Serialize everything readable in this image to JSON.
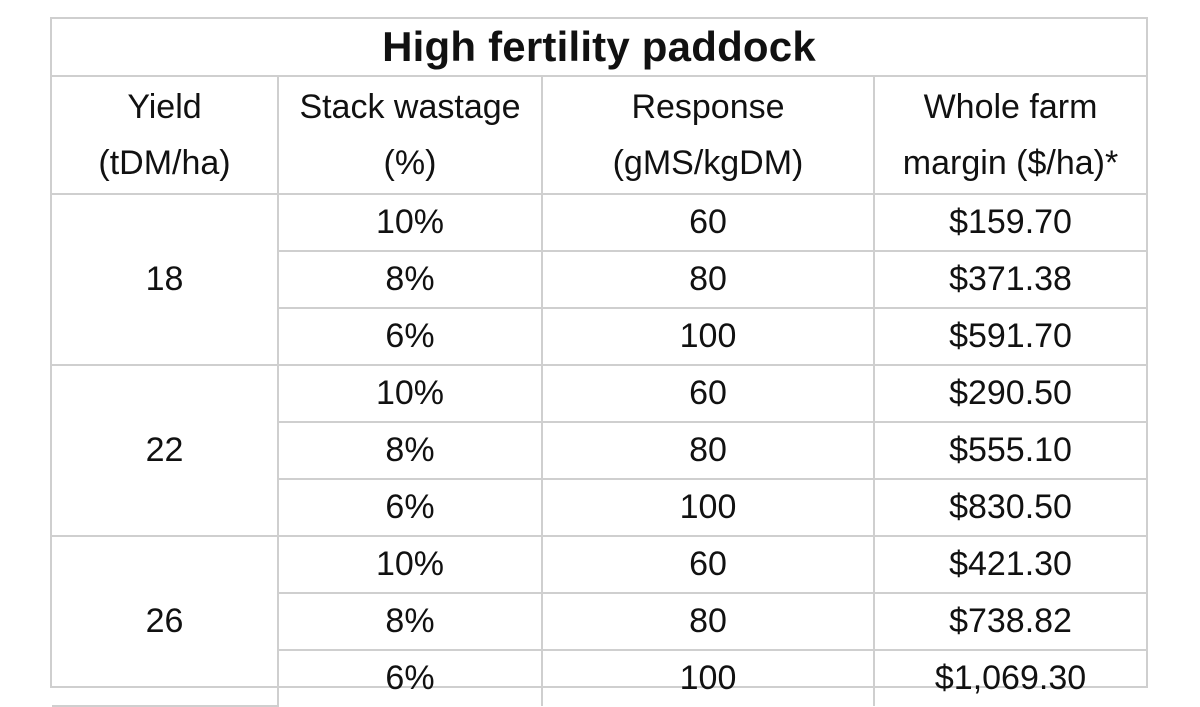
{
  "table": {
    "title": "High fertility paddock",
    "headers": [
      {
        "line1": "Yield",
        "line2": "(tDM/ha)"
      },
      {
        "line1": "Stack wastage",
        "line2": "(%)"
      },
      {
        "line1": "Response",
        "line2": "(gMS/kgDM)"
      },
      {
        "line1": "Whole farm",
        "line2": "margin ($/ha)*"
      }
    ],
    "groups": [
      {
        "yield": "18",
        "rows": [
          {
            "wastage": "10%",
            "response": "60",
            "margin": "$159.70"
          },
          {
            "wastage": "8%",
            "response": "80",
            "margin": "$371.38"
          },
          {
            "wastage": "6%",
            "response": "100",
            "margin": "$591.70"
          }
        ]
      },
      {
        "yield": "22",
        "rows": [
          {
            "wastage": "10%",
            "response": "60",
            "margin": "$290.50"
          },
          {
            "wastage": "8%",
            "response": "80",
            "margin": "$555.10"
          },
          {
            "wastage": "6%",
            "response": "100",
            "margin": "$830.50"
          }
        ]
      },
      {
        "yield": "26",
        "rows": [
          {
            "wastage": "10%",
            "response": "60",
            "margin": "$421.30"
          },
          {
            "wastage": "8%",
            "response": "80",
            "margin": "$738.82"
          },
          {
            "wastage": "6%",
            "response": "100",
            "margin": "$1,069.30"
          }
        ]
      }
    ]
  }
}
